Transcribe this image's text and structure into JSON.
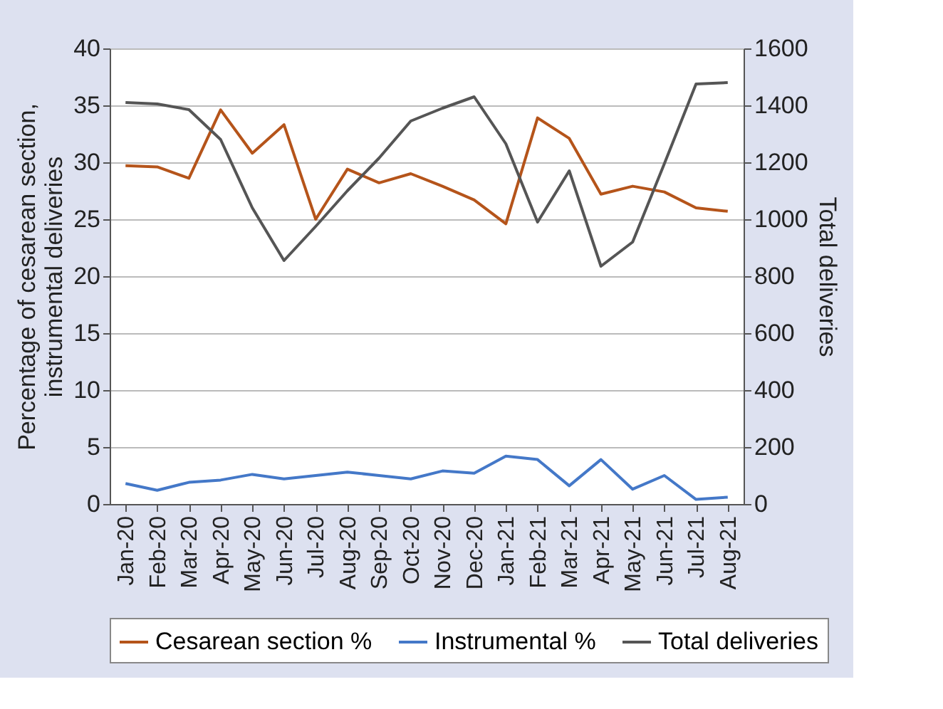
{
  "chart_data": {
    "type": "line",
    "ylabel": "Percentage of cesarean section,\ninstrumental deliveries",
    "y2label": "Total deliveries",
    "categories": [
      "Jan-20",
      "Feb-20",
      "Mar-20",
      "Apr-20",
      "May-20",
      "Jun-20",
      "Jul-20",
      "Aug-20",
      "Sep-20",
      "Oct-20",
      "Nov-20",
      "Dec-20",
      "Jan-21",
      "Feb-21",
      "Mar-21",
      "Apr-21",
      "May-21",
      "Jun-21",
      "Jul-21",
      "Aug-21"
    ],
    "series": [
      {
        "name": "Cesarean section %",
        "color": "#b5541a",
        "values": [
          29.7,
          29.6,
          28.6,
          34.6,
          30.8,
          33.3,
          25.0,
          29.4,
          28.2,
          29.0,
          27.9,
          26.7,
          24.6,
          33.9,
          32.1,
          27.2,
          27.9,
          27.4,
          26.0,
          25.7
        ]
      },
      {
        "name": "Instrumental %",
        "color": "#4478c8",
        "values": [
          1.8,
          1.2,
          1.9,
          2.1,
          2.6,
          2.2,
          2.5,
          2.8,
          2.5,
          2.2,
          2.9,
          2.7,
          4.2,
          3.9,
          1.6,
          3.9,
          1.3,
          2.5,
          0.4,
          0.6
        ]
      },
      {
        "name": "Total deliveries",
        "color": "#555555",
        "axis": "y2",
        "values": [
          1410,
          1405,
          1385,
          1280,
          1040,
          855,
          975,
          1100,
          1215,
          1345,
          1390,
          1430,
          1265,
          990,
          1170,
          835,
          920,
          1195,
          1475,
          1480
        ]
      }
    ],
    "ylim": [
      0,
      40
    ],
    "yticks": [
      0,
      5,
      10,
      15,
      20,
      25,
      30,
      35,
      40
    ],
    "y2lim": [
      0,
      1600
    ],
    "y2ticks": [
      0,
      200,
      400,
      600,
      800,
      1000,
      1200,
      1400,
      1600
    ],
    "grid": "y",
    "legend": "bottom",
    "marker": "none",
    "line_style": "solid"
  }
}
